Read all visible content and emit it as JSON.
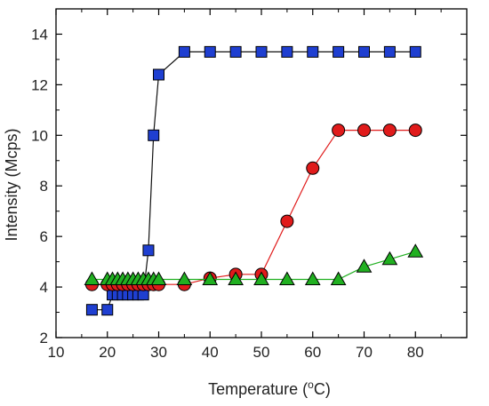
{
  "chart_data": {
    "type": "line",
    "xlabel": "Temperature (°C)",
    "xlabel_parts": {
      "pre": "Temperature (",
      "sup": "o",
      "post": "C)"
    },
    "ylabel": "Intensity (Mcps)",
    "xlim": [
      10,
      90
    ],
    "ylim": [
      2,
      15
    ],
    "xticks": [
      10,
      20,
      30,
      40,
      50,
      60,
      70,
      80
    ],
    "yticks": [
      2,
      4,
      6,
      8,
      10,
      12,
      14
    ],
    "grid": false,
    "series": [
      {
        "marker": "square",
        "color": "#1f3fd1",
        "line_color": "#111111",
        "x": [
          17,
          20,
          21,
          22,
          23,
          24,
          25,
          26,
          27,
          28,
          29,
          30,
          35,
          40,
          45,
          50,
          55,
          60,
          65,
          70,
          75,
          80
        ],
        "y": [
          3.1,
          3.1,
          3.7,
          3.7,
          3.7,
          3.7,
          3.7,
          3.7,
          3.7,
          5.45,
          10.0,
          12.4,
          13.3,
          13.3,
          13.3,
          13.3,
          13.3,
          13.3,
          13.3,
          13.3,
          13.3,
          13.3
        ]
      },
      {
        "marker": "circle",
        "color": "#e01b1b",
        "line_color": "#e01b1b",
        "x": [
          17,
          20,
          21,
          22,
          23,
          24,
          25,
          26,
          27,
          28,
          29,
          30,
          35,
          40,
          45,
          50,
          55,
          60,
          65,
          70,
          75,
          80
        ],
        "y": [
          4.1,
          4.1,
          4.1,
          4.1,
          4.1,
          4.1,
          4.1,
          4.1,
          4.1,
          4.1,
          4.1,
          4.1,
          4.1,
          4.35,
          4.5,
          4.5,
          6.6,
          8.7,
          10.2,
          10.2,
          10.2,
          10.2
        ]
      },
      {
        "marker": "triangle",
        "color": "#21b021",
        "line_color": "#21b021",
        "x": [
          17,
          20,
          21,
          22,
          23,
          24,
          25,
          26,
          27,
          28,
          29,
          30,
          35,
          40,
          45,
          50,
          55,
          60,
          65,
          70,
          75,
          80
        ],
        "y": [
          4.3,
          4.3,
          4.3,
          4.3,
          4.3,
          4.3,
          4.3,
          4.3,
          4.3,
          4.3,
          4.3,
          4.3,
          4.3,
          4.3,
          4.3,
          4.3,
          4.3,
          4.3,
          4.3,
          4.8,
          5.1,
          5.4
        ]
      }
    ]
  }
}
